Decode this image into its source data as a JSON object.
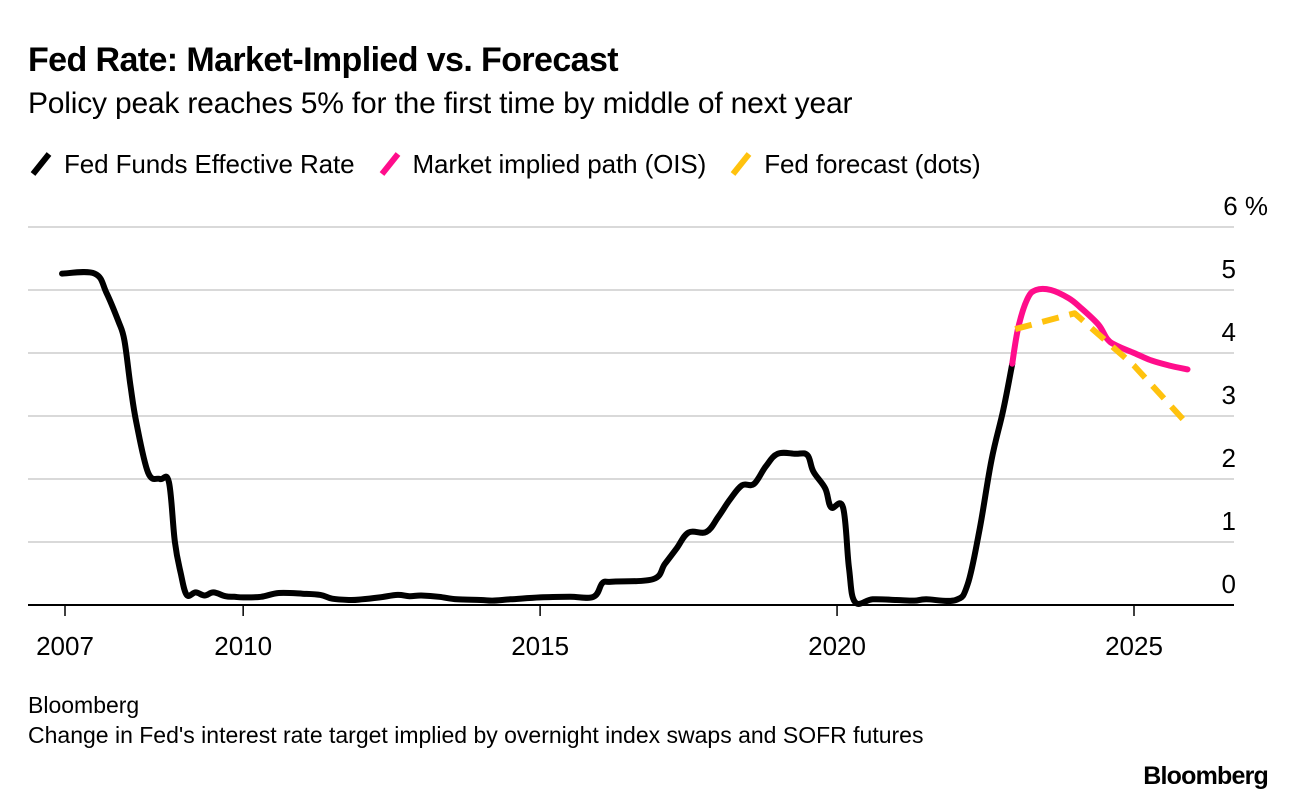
{
  "header": {
    "title": "Fed Rate: Market-Implied vs. Forecast",
    "subtitle": "Policy peak reaches 5% for the first time by middle of next year"
  },
  "footer": {
    "source": "Bloomberg",
    "note": "Change in Fed's interest rate target implied by overnight index swaps and SOFR futures",
    "brand": "Bloomberg"
  },
  "chart_data": {
    "type": "line",
    "title": "Fed Rate: Market-Implied vs. Forecast",
    "subtitle": "Policy peak reaches 5% for the first time by middle of next year",
    "xlabel": "",
    "ylabel": "%",
    "xlim": [
      2006.45,
      2026.8
    ],
    "ylim": [
      0,
      6
    ],
    "grid": true,
    "legend_position": "top-left",
    "x_ticks": [
      2007,
      2010,
      2015,
      2020,
      2025
    ],
    "x_tick_labels": [
      "2007",
      "2010",
      "2015",
      "2020",
      "2025"
    ],
    "y_ticks": [
      0,
      1,
      2,
      3,
      4,
      5,
      6
    ],
    "y_tick_labels": [
      "0",
      "1",
      "2",
      "3",
      "4",
      "5",
      "6 %"
    ],
    "y_axis_side": "right",
    "series": [
      {
        "name": "Fed Funds Effective Rate",
        "color": "#000000",
        "style": "solid",
        "x": [
          2006.95,
          2007.5,
          2007.7,
          2007.9,
          2008.0,
          2008.1,
          2008.2,
          2008.4,
          2008.6,
          2008.75,
          2008.85,
          2008.95,
          2009.05,
          2009.2,
          2009.35,
          2009.5,
          2009.7,
          2009.85,
          2010.0,
          2010.3,
          2010.6,
          2011.0,
          2011.3,
          2011.5,
          2011.8,
          2012.0,
          2012.3,
          2012.6,
          2012.8,
          2013.0,
          2013.3,
          2013.6,
          2014.0,
          2014.2,
          2014.5,
          2015.0,
          2015.5,
          2015.9,
          2016.05,
          2016.2,
          2016.9,
          2017.1,
          2017.3,
          2017.5,
          2017.8,
          2018.0,
          2018.2,
          2018.4,
          2018.6,
          2018.8,
          2019.0,
          2019.3,
          2019.5,
          2019.6,
          2019.8,
          2019.9,
          2020.1,
          2020.2,
          2020.3,
          2020.6,
          2021.0,
          2021.3,
          2021.5,
          2022.0,
          2022.2,
          2022.4,
          2022.6,
          2022.8,
          2022.95
        ],
        "values": [
          5.26,
          5.26,
          4.95,
          4.5,
          4.2,
          3.5,
          2.9,
          2.1,
          2.0,
          1.95,
          1.0,
          0.5,
          0.16,
          0.2,
          0.15,
          0.2,
          0.14,
          0.13,
          0.12,
          0.13,
          0.19,
          0.18,
          0.16,
          0.1,
          0.08,
          0.09,
          0.12,
          0.16,
          0.14,
          0.15,
          0.13,
          0.09,
          0.08,
          0.07,
          0.09,
          0.12,
          0.13,
          0.13,
          0.35,
          0.37,
          0.41,
          0.65,
          0.9,
          1.15,
          1.16,
          1.4,
          1.68,
          1.9,
          1.92,
          2.2,
          2.4,
          2.4,
          2.38,
          2.12,
          1.85,
          1.55,
          1.55,
          0.6,
          0.05,
          0.09,
          0.08,
          0.07,
          0.09,
          0.08,
          0.33,
          1.2,
          2.3,
          3.1,
          3.83
        ]
      },
      {
        "name": "Market implied path (OIS)",
        "color": "#ff0d8b",
        "style": "solid",
        "x": [
          2022.95,
          2023.05,
          2023.2,
          2023.35,
          2023.6,
          2023.9,
          2024.1,
          2024.4,
          2024.55,
          2024.7,
          2025.0,
          2025.3,
          2025.6,
          2025.9
        ],
        "values": [
          3.83,
          4.4,
          4.85,
          5.0,
          5.0,
          4.87,
          4.72,
          4.45,
          4.22,
          4.12,
          4.0,
          3.88,
          3.8,
          3.74
        ]
      },
      {
        "name": "Fed forecast (dots)",
        "color": "#ffc20e",
        "style": "dashed",
        "x": [
          2023.0,
          2024.0,
          2025.0,
          2025.9
        ],
        "values": [
          4.38,
          4.63,
          3.8,
          2.87
        ]
      }
    ]
  }
}
